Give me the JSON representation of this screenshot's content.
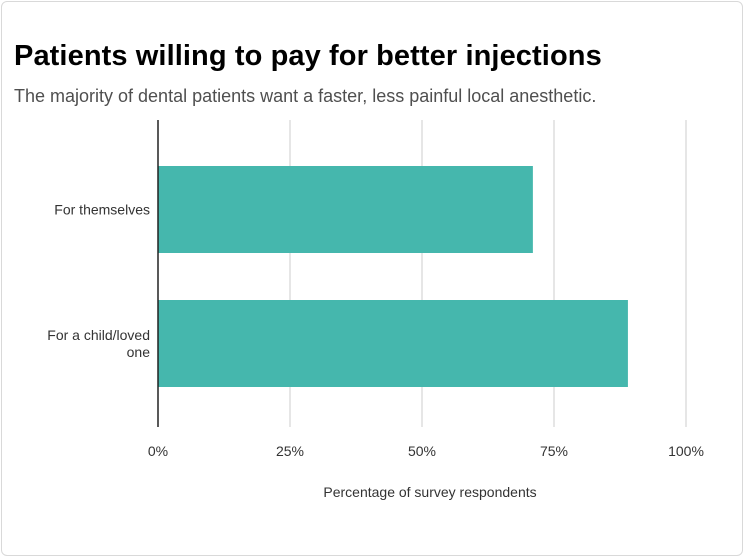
{
  "chart_data": {
    "type": "bar",
    "orientation": "horizontal",
    "title": "Patients willing to pay for better injections",
    "subtitle": "The majority of dental patients want a faster, less painful local anesthetic.",
    "categories": [
      "For themselves",
      "For a child/loved one"
    ],
    "values": [
      71,
      89
    ],
    "xlabel": "Percentage of survey respondents",
    "ylabel": "",
    "xlim": [
      0,
      100
    ],
    "ticks": [
      0,
      25,
      50,
      75,
      100
    ],
    "tick_labels": [
      "0%",
      "25%",
      "50%",
      "75%",
      "100%"
    ],
    "grid": true,
    "legend": "none",
    "bar_color": "#45b7ad"
  }
}
